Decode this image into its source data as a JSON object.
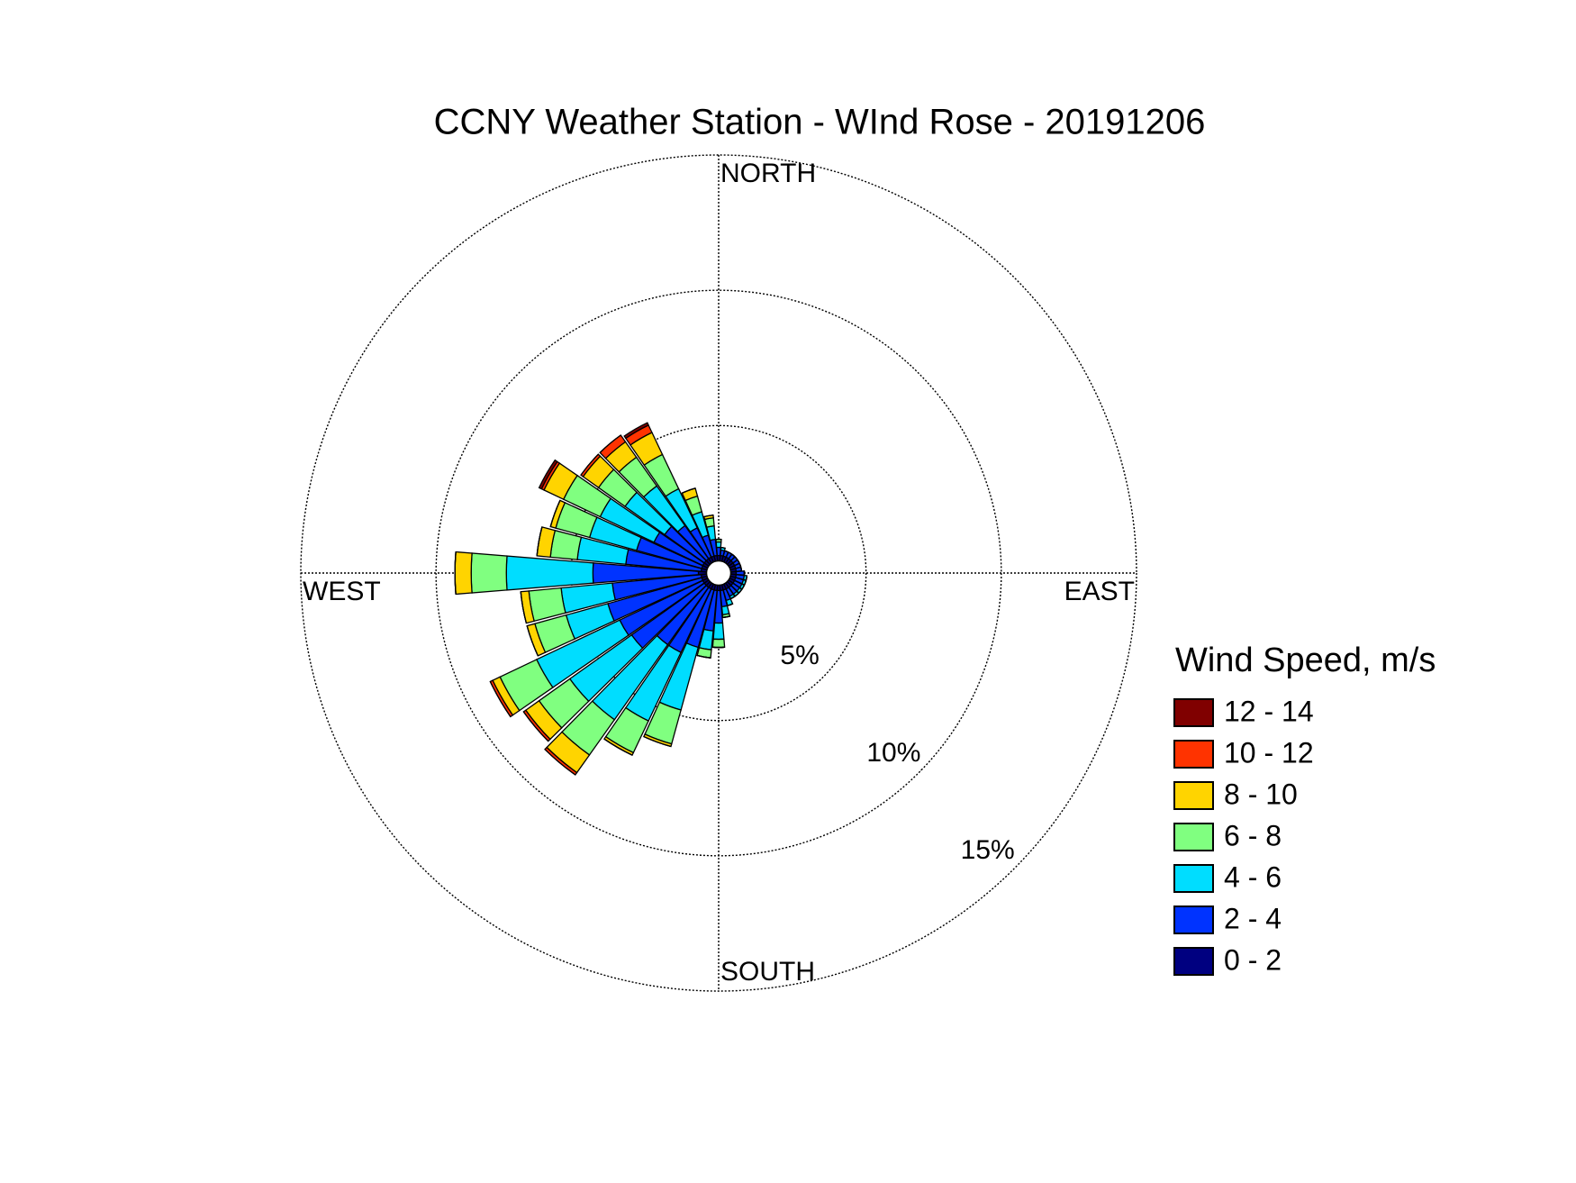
{
  "chart_data": {
    "type": "windrose",
    "title": "CCNY Weather Station - WInd Rose - 20191206",
    "direction_labels": [
      "NORTH",
      "EAST",
      "SOUTH",
      "WEST"
    ],
    "legend_title": "Wind Speed, m/s",
    "directions": [
      0,
      10,
      20,
      30,
      40,
      50,
      60,
      70,
      80,
      90,
      100,
      110,
      120,
      130,
      140,
      150,
      160,
      170,
      180,
      190,
      200,
      210,
      220,
      230,
      240,
      250,
      260,
      270,
      280,
      290,
      300,
      310,
      320,
      330,
      340,
      350
    ],
    "rlim": [
      0,
      15
    ],
    "rticks": [
      {
        "value": 5,
        "label": "5%"
      },
      {
        "value": 10,
        "label": "10%"
      },
      {
        "value": 15,
        "label": "15%"
      }
    ],
    "grid": true,
    "series": [
      {
        "name": "0 - 2",
        "color": "#000080",
        "values": [
          0.2,
          0.2,
          0.2,
          0.2,
          0.2,
          0.2,
          0.2,
          0.2,
          0.2,
          0.2,
          0.2,
          0.2,
          0.2,
          0.2,
          0.2,
          0.2,
          0.2,
          0.2,
          0.2,
          0.2,
          0.2,
          0.2,
          0.2,
          0.2,
          0.2,
          0.2,
          0.2,
          0.3,
          0.2,
          0.2,
          0.2,
          0.2,
          0.2,
          0.2,
          0.2,
          0.2
        ]
      },
      {
        "name": "2 - 4",
        "color": "#0033ff",
        "values": [
          0.3,
          0.2,
          0.2,
          0.2,
          0.2,
          0.2,
          0.2,
          0.2,
          0.2,
          0.3,
          0.3,
          0.3,
          0.3,
          0.3,
          0.3,
          0.3,
          0.4,
          0.6,
          1.2,
          1.5,
          2.2,
          2.6,
          2.6,
          3.3,
          3.4,
          3.6,
          3.3,
          3.9,
          2.8,
          2.5,
          2.0,
          1.8,
          1.5,
          1.2,
          0.8,
          0.6
        ]
      },
      {
        "name": "4 - 6",
        "color": "#00ddff",
        "values": [
          0.2,
          0.1,
          0,
          0,
          0,
          0,
          0,
          0,
          0,
          0,
          0.1,
          0.1,
          0.1,
          0.1,
          0.1,
          0.1,
          0.2,
          0.3,
          0.6,
          0.7,
          2.4,
          2.8,
          3.4,
          2.8,
          3.4,
          1.6,
          1.9,
          3.2,
          1.8,
          1.8,
          2.2,
          1.8,
          1.8,
          1.6,
          0.9,
          0.5
        ]
      },
      {
        "name": "6 - 8",
        "color": "#80ff80",
        "values": [
          0.1,
          0,
          0,
          0,
          0,
          0,
          0,
          0,
          0,
          0,
          0,
          0,
          0,
          0,
          0,
          0,
          0,
          0.1,
          0.3,
          0.3,
          1.3,
          1.3,
          1.6,
          1.4,
          1.5,
          1.2,
          1.2,
          1.3,
          1.0,
          1.3,
          1.5,
          1.2,
          1.3,
          1.4,
          0.6,
          0.3
        ]
      },
      {
        "name": "8 - 10",
        "color": "#ffd400",
        "values": [
          0,
          0,
          0,
          0,
          0,
          0,
          0,
          0,
          0,
          0,
          0,
          0,
          0,
          0,
          0,
          0,
          0,
          0,
          0,
          0,
          0.1,
          0.1,
          0.8,
          0.6,
          0.3,
          0.3,
          0.3,
          0.6,
          0.5,
          0.2,
          0.8,
          0.7,
          0.7,
          0.9,
          0.3,
          0.1
        ]
      },
      {
        "name": "10 - 12",
        "color": "#ff3300",
        "values": [
          0,
          0,
          0,
          0,
          0,
          0,
          0,
          0,
          0,
          0,
          0,
          0,
          0,
          0,
          0,
          0,
          0,
          0,
          0,
          0,
          0,
          0,
          0.1,
          0.1,
          0.1,
          0,
          0,
          0,
          0,
          0,
          0.1,
          0.1,
          0.3,
          0.3,
          0,
          0
        ]
      },
      {
        "name": "12 - 14",
        "color": "#800000",
        "values": [
          0,
          0,
          0,
          0,
          0,
          0,
          0,
          0,
          0,
          0,
          0,
          0,
          0,
          0,
          0,
          0,
          0,
          0,
          0,
          0,
          0,
          0,
          0,
          0,
          0,
          0,
          0,
          0,
          0,
          0,
          0.1,
          0,
          0,
          0.1,
          0,
          0
        ]
      }
    ]
  }
}
